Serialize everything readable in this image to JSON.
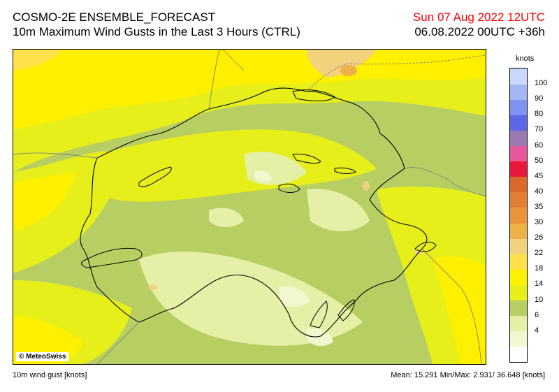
{
  "header": {
    "title": "COSMO-2E ENSEMBLE_FORECAST",
    "subtitle": "10m Maximum Wind Gusts in the Last 3 Hours (CTRL)",
    "valid_date": "Sun 07 Aug 2022 12UTC",
    "run_info": "06.08.2022 00UTC +36h"
  },
  "map": {
    "credit": "© MeteoSwiss"
  },
  "legend": {
    "unit": "knots",
    "bands": [
      {
        "label": "",
        "color": "#ffffff"
      },
      {
        "label": "4",
        "color": "#f3f7cf"
      },
      {
        "label": "6",
        "color": "#e4f0a6"
      },
      {
        "label": "10",
        "color": "#b7cf62"
      },
      {
        "label": "14",
        "color": "#e6ef1a"
      },
      {
        "label": "18",
        "color": "#fff000"
      },
      {
        "label": "22",
        "color": "#ffe24a"
      },
      {
        "label": "26",
        "color": "#f3d27e"
      },
      {
        "label": "30",
        "color": "#eeb148"
      },
      {
        "label": "35",
        "color": "#e9953b"
      },
      {
        "label": "40",
        "color": "#e27e33"
      },
      {
        "label": "45",
        "color": "#da6a2a"
      },
      {
        "label": "50",
        "color": "#e8173c"
      },
      {
        "label": "60",
        "color": "#e4589b"
      },
      {
        "label": "70",
        "color": "#9a78b0"
      },
      {
        "label": "80",
        "color": "#5a68e6"
      },
      {
        "label": "90",
        "color": "#7e93ef"
      },
      {
        "label": "100",
        "color": "#a3b8f2"
      },
      {
        "label": "",
        "color": "#c9d7fa"
      }
    ]
  },
  "footer": {
    "variable": "10m wind gust [knots]",
    "stats": "Mean:  15.291 Min/Max:   2.931/ 36.648 [knots]"
  }
}
